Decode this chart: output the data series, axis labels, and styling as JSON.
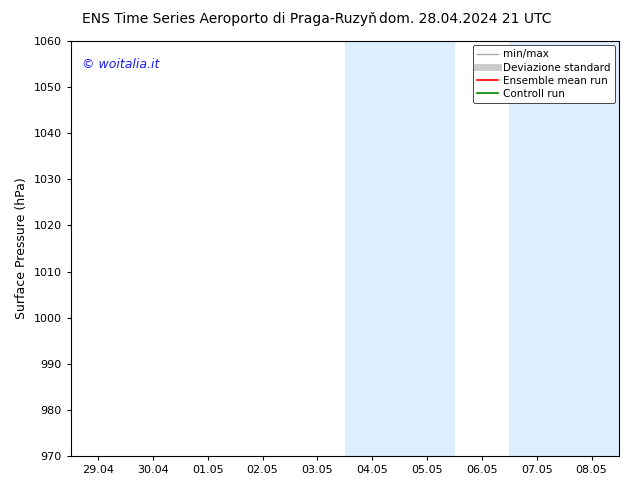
{
  "title_left": "ENS Time Series Aeroporto di Praga-Ruzyň",
  "title_right": "dom. 28.04.2024 21 UTC",
  "ylabel": "Surface Pressure (hPa)",
  "watermark": "© woitalia.it",
  "watermark_color": "#1a1aff",
  "ylim": [
    970,
    1060
  ],
  "yticks": [
    970,
    980,
    990,
    1000,
    1010,
    1020,
    1030,
    1040,
    1050,
    1060
  ],
  "xtick_labels": [
    "29.04",
    "30.04",
    "01.05",
    "02.05",
    "03.05",
    "04.05",
    "05.05",
    "06.05",
    "07.05",
    "08.05"
  ],
  "shaded_regions": [
    {
      "xstart": 5,
      "xend": 7
    },
    {
      "xstart": 8,
      "xend": 10
    }
  ],
  "shade_color": "#ddeeff",
  "background_color": "#ffffff",
  "legend_entries": [
    {
      "label": "min/max",
      "color": "#aaaaaa",
      "lw": 1.0
    },
    {
      "label": "Deviazione standard",
      "color": "#cccccc",
      "lw": 5
    },
    {
      "label": "Ensemble mean run",
      "color": "#ff0000",
      "lw": 1.2
    },
    {
      "label": "Controll run",
      "color": "#008800",
      "lw": 1.2
    }
  ],
  "title_fontsize": 10,
  "tick_fontsize": 8,
  "ylabel_fontsize": 9,
  "watermark_fontsize": 9
}
